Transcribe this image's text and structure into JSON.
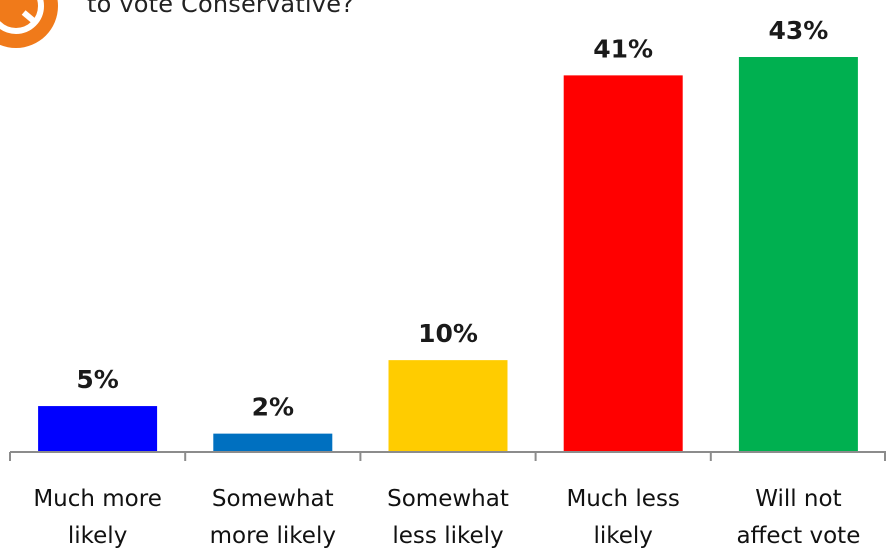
{
  "question": {
    "text": "to vote Conservative?"
  },
  "chart_data": {
    "type": "bar",
    "categories": [
      [
        "Much more",
        "likely"
      ],
      [
        "Somewhat",
        "more likely"
      ],
      [
        "Somewhat",
        "less likely"
      ],
      [
        "Much less",
        "likely"
      ],
      [
        "Will not",
        "affect vote"
      ]
    ],
    "values": [
      5,
      2,
      10,
      41,
      43
    ],
    "data_labels": [
      "5%",
      "2%",
      "10%",
      "41%",
      "43%"
    ],
    "colors": [
      "#0000ff",
      "#0070c0",
      "#ffcc00",
      "#ff0000",
      "#00b050"
    ],
    "ylim": [
      0,
      43
    ],
    "grid": false,
    "legend": "none"
  }
}
